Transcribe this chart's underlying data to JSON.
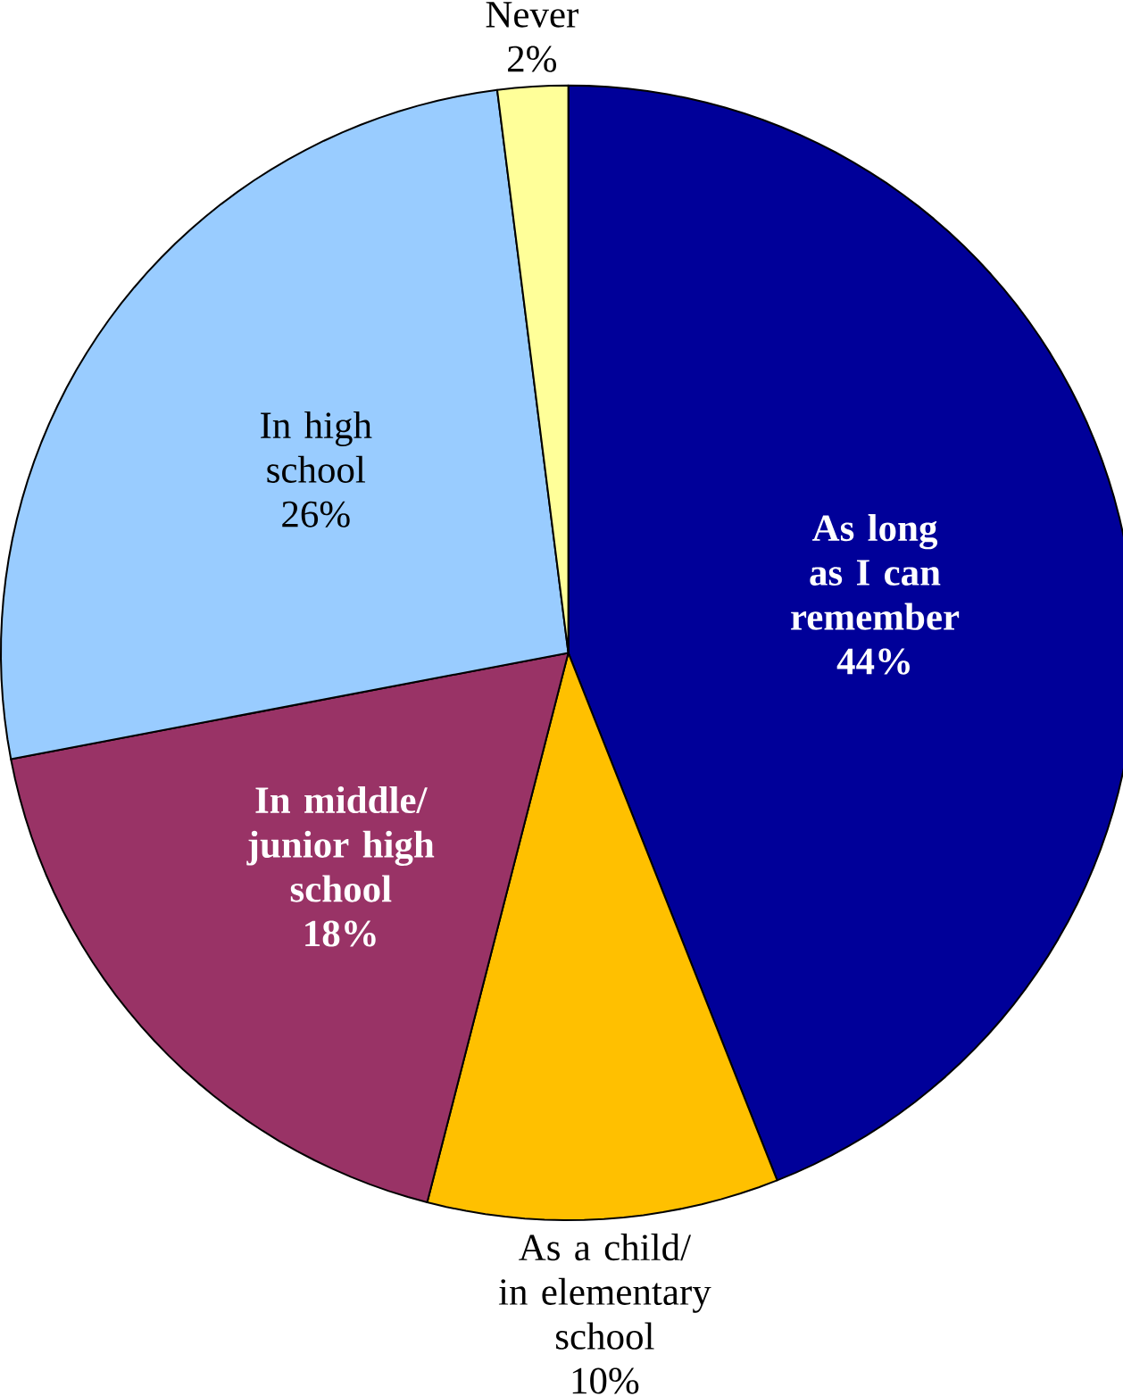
{
  "chart_data": {
    "type": "pie",
    "categories": [
      "As long as I can remember",
      "As a child/ in elementary school",
      "In middle/ junior high school",
      "In high school",
      "Never"
    ],
    "values": [
      44,
      10,
      18,
      26,
      2
    ],
    "value_labels": [
      "44%",
      "10%",
      "18%",
      "26%",
      "2%"
    ],
    "colors": [
      "#000099",
      "#ffc000",
      "#993366",
      "#99ccff",
      "#ffff99"
    ]
  }
}
